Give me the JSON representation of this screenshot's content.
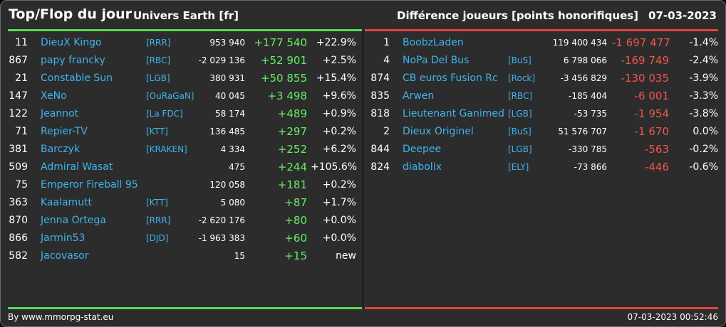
{
  "header": {
    "title": "Top/Flop du jour",
    "universe": "Univers Earth [fr]",
    "metric": "Différence joueurs [points honorifiques]",
    "date": "07-03-2023"
  },
  "colors": {
    "background": "#2c2c2c",
    "top_line": "#52dd52",
    "flop_line": "#e0463f",
    "player_link": "#3fb4ee",
    "positive": "#66ee66",
    "negative": "#f0564a"
  },
  "top": [
    {
      "rank": "11",
      "name": "DieuX Kingo",
      "alliance": "[RRR]",
      "points": "953 940",
      "diff": "+177 540",
      "pct": "+22.9%"
    },
    {
      "rank": "867",
      "name": "papy francky",
      "alliance": "[RBC]",
      "points": "-2 029 136",
      "diff": "+52 901",
      "pct": "+2.5%"
    },
    {
      "rank": "21",
      "name": "Constable Sun",
      "alliance": "[LGB]",
      "points": "380 931",
      "diff": "+50 855",
      "pct": "+15.4%"
    },
    {
      "rank": "147",
      "name": "XeNo",
      "alliance": "[OuRaGaN]",
      "points": "40 045",
      "diff": "+3 498",
      "pct": "+9.6%"
    },
    {
      "rank": "122",
      "name": "Jeannot",
      "alliance": "[La FDC]",
      "points": "58 174",
      "diff": "+489",
      "pct": "+0.9%"
    },
    {
      "rank": "71",
      "name": "Repier-TV",
      "alliance": "[KTT]",
      "points": "136 485",
      "diff": "+297",
      "pct": "+0.2%"
    },
    {
      "rank": "381",
      "name": "Barczyk",
      "alliance": "[KRAKEN]",
      "points": "4 334",
      "diff": "+252",
      "pct": "+6.2%"
    },
    {
      "rank": "509",
      "name": "Admiral Wasat",
      "alliance": "",
      "points": "475",
      "diff": "+244",
      "pct": "+105.6%"
    },
    {
      "rank": "75",
      "name": "Emperor Fireball 95",
      "alliance": "",
      "points": "120 058",
      "diff": "+181",
      "pct": "+0.2%"
    },
    {
      "rank": "363",
      "name": "Kaalamutt",
      "alliance": "[KTT]",
      "points": "5 080",
      "diff": "+87",
      "pct": "+1.7%"
    },
    {
      "rank": "870",
      "name": "Jenna Ortega",
      "alliance": "[RRR]",
      "points": "-2 620 176",
      "diff": "+80",
      "pct": "+0.0%"
    },
    {
      "rank": "866",
      "name": "Jarmin53",
      "alliance": "[DJD]",
      "points": "-1 963 383",
      "diff": "+60",
      "pct": "+0.0%"
    },
    {
      "rank": "582",
      "name": "Jacovasor",
      "alliance": "",
      "points": "15",
      "diff": "+15",
      "pct": "new"
    }
  ],
  "flop": [
    {
      "rank": "1",
      "name": "BoobzLaden",
      "alliance": "",
      "points": "119 400 434",
      "diff": "-1 697 477",
      "pct": "-1.4%"
    },
    {
      "rank": "4",
      "name": "NoPa Del Bus",
      "alliance": "[BuS]",
      "points": "6 798 066",
      "diff": "-169 749",
      "pct": "-2.4%"
    },
    {
      "rank": "874",
      "name": "CB euros Fusion Rc",
      "alliance": "[Rock]",
      "points": "-3 456 829",
      "diff": "-130 035",
      "pct": "-3.9%"
    },
    {
      "rank": "835",
      "name": "Arwen",
      "alliance": "[RBC]",
      "points": "-185 404",
      "diff": "-6 001",
      "pct": "-3.3%"
    },
    {
      "rank": "818",
      "name": "Lieutenant Ganimed",
      "alliance": "[LGB]",
      "points": "-53 735",
      "diff": "-1 954",
      "pct": "-3.8%"
    },
    {
      "rank": "2",
      "name": "Dieux Originel",
      "alliance": "[BuS]",
      "points": "51 576 707",
      "diff": "-1 670",
      "pct": "0.0%"
    },
    {
      "rank": "844",
      "name": "Deepee",
      "alliance": "[LGB]",
      "points": "-330 785",
      "diff": "-563",
      "pct": "-0.2%"
    },
    {
      "rank": "824",
      "name": "diabolix",
      "alliance": "[ELY]",
      "points": "-73 866",
      "diff": "-446",
      "pct": "-0.6%"
    }
  ],
  "footer": {
    "credit": "By www.mmorpg-stat.eu",
    "timestamp": "07-03-2023 00:52:46"
  }
}
